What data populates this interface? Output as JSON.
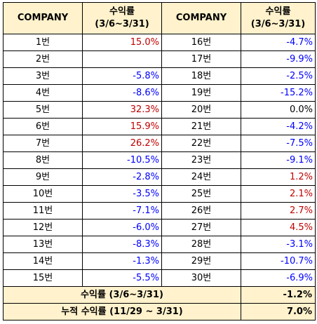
{
  "header": {
    "company": "COMPANY",
    "return_line1": "수익률",
    "return_line2": "(3/6~3/31)"
  },
  "rows_left": [
    {
      "name": "1번",
      "value": "15.0%",
      "sign": "pos"
    },
    {
      "name": "2번",
      "value": "",
      "sign": "zero"
    },
    {
      "name": "3번",
      "value": "-5.8%",
      "sign": "neg"
    },
    {
      "name": "4번",
      "value": "-8.6%",
      "sign": "neg"
    },
    {
      "name": "5번",
      "value": "32.3%",
      "sign": "pos"
    },
    {
      "name": "6번",
      "value": "15.9%",
      "sign": "pos"
    },
    {
      "name": "7번",
      "value": "26.2%",
      "sign": "pos"
    },
    {
      "name": "8번",
      "value": "-10.5%",
      "sign": "neg"
    },
    {
      "name": "9번",
      "value": "-2.8%",
      "sign": "neg"
    },
    {
      "name": "10번",
      "value": "-3.5%",
      "sign": "neg"
    },
    {
      "name": "11번",
      "value": "-7.1%",
      "sign": "neg"
    },
    {
      "name": "12번",
      "value": "-6.0%",
      "sign": "neg"
    },
    {
      "name": "13번",
      "value": "-8.3%",
      "sign": "neg"
    },
    {
      "name": "14번",
      "value": "-1.3%",
      "sign": "neg"
    },
    {
      "name": "15번",
      "value": "-5.5%",
      "sign": "neg"
    }
  ],
  "rows_right": [
    {
      "name": "16번",
      "value": "-4.7%",
      "sign": "neg"
    },
    {
      "name": "17번",
      "value": "-9.9%",
      "sign": "neg"
    },
    {
      "name": "18번",
      "value": "-2.5%",
      "sign": "neg"
    },
    {
      "name": "19번",
      "value": "-15.2%",
      "sign": "neg"
    },
    {
      "name": "20번",
      "value": "0.0%",
      "sign": "zero"
    },
    {
      "name": "21번",
      "value": "-4.2%",
      "sign": "neg"
    },
    {
      "name": "22번",
      "value": "-7.5%",
      "sign": "neg"
    },
    {
      "name": "23번",
      "value": "-9.1%",
      "sign": "neg"
    },
    {
      "name": "24번",
      "value": "1.2%",
      "sign": "pos"
    },
    {
      "name": "25번",
      "value": "2.1%",
      "sign": "pos"
    },
    {
      "name": "26번",
      "value": "2.7%",
      "sign": "pos"
    },
    {
      "name": "27번",
      "value": "4.5%",
      "sign": "pos"
    },
    {
      "name": "28번",
      "value": "-3.1%",
      "sign": "neg"
    },
    {
      "name": "29번",
      "value": "-10.7%",
      "sign": "neg"
    },
    {
      "name": "30번",
      "value": "-6.9%",
      "sign": "neg"
    }
  ],
  "summary": {
    "period_label": "수익률 (3/6~3/31)",
    "period_value": "-1.2%",
    "cumulative_label": "누적 수익률 (11/29 ~ 3/31)",
    "cumulative_value": "7.0%"
  },
  "colors": {
    "header_bg": "#fff2cc",
    "positive": "#c00000",
    "negative": "#0000ff",
    "zero": "#000000"
  }
}
